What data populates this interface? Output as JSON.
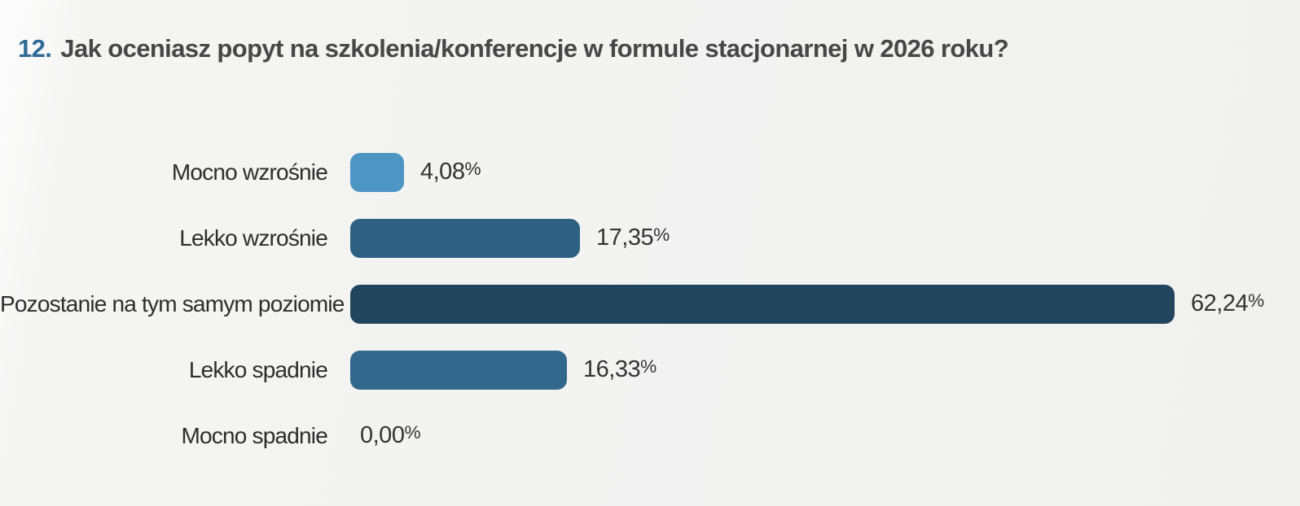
{
  "title": {
    "number": "12.",
    "text": "Jak oceniasz popyt na szkolenia/konferencje w formule stacjonarnej w 2026 roku?"
  },
  "chart_data": {
    "type": "bar",
    "orientation": "horizontal",
    "title": "12. Jak oceniasz popyt na szkolenia/konferencje w formule stacjonarnej w 2026 roku?",
    "categories": [
      "Mocno wzrośnie",
      "Lekko wzrośnie",
      "Pozostanie na tym samym poziomie",
      "Lekko spadnie",
      "Mocno spadnie"
    ],
    "values": [
      4.08,
      17.35,
      62.24,
      16.33,
      0.0
    ],
    "value_labels": [
      "4,08%",
      "17,35%",
      "62,24%",
      "16,33%",
      "0,00%"
    ],
    "colors": [
      "#4d96c4",
      "#2e6181",
      "#20455c",
      "#31688c",
      null
    ],
    "xlim": [
      0,
      100
    ],
    "grid": false,
    "legend": false,
    "accent_color": "#2d6a96",
    "label_color": "#2d2d2d",
    "value_color": "#333333",
    "background_color": "#f1f1f0"
  }
}
